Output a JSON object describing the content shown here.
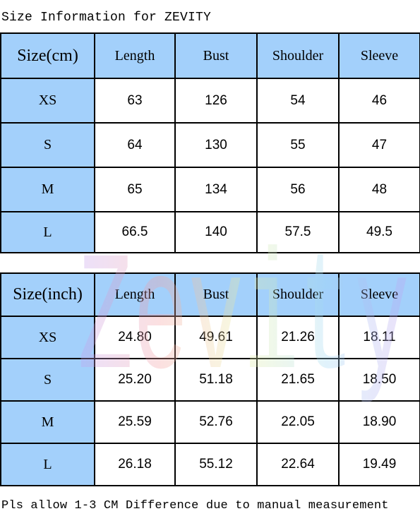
{
  "title": "Size Information for ZEVITY",
  "watermark_text": "Zevity",
  "colors": {
    "header_bg": "#a3d0fb",
    "border": "#000000",
    "cell_bg": "#ffffff"
  },
  "table_cm": {
    "headers": [
      "Size(cm)",
      "Length",
      "Bust",
      "Shoulder",
      "Sleeve"
    ],
    "rows": [
      [
        "XS",
        "63",
        "126",
        "54",
        "46"
      ],
      [
        "S",
        "64",
        "130",
        "55",
        "47"
      ],
      [
        "M",
        "65",
        "134",
        "56",
        "48"
      ],
      [
        "L",
        "66.5",
        "140",
        "57.5",
        "49.5"
      ]
    ]
  },
  "table_inch": {
    "headers": [
      "Size(inch)",
      "Length",
      "Bust",
      "Shoulder",
      "Sleeve"
    ],
    "rows": [
      [
        "XS",
        "24.80",
        "49.61",
        "21.26",
        "18.11"
      ],
      [
        "S",
        "25.20",
        "51.18",
        "21.65",
        "18.50"
      ],
      [
        "M",
        "25.59",
        "52.76",
        "22.05",
        "18.90"
      ],
      [
        "L",
        "26.18",
        "55.12",
        "22.64",
        "19.49"
      ]
    ]
  },
  "footer": "Pls allow 1-3 CM Difference due to manual measurement"
}
